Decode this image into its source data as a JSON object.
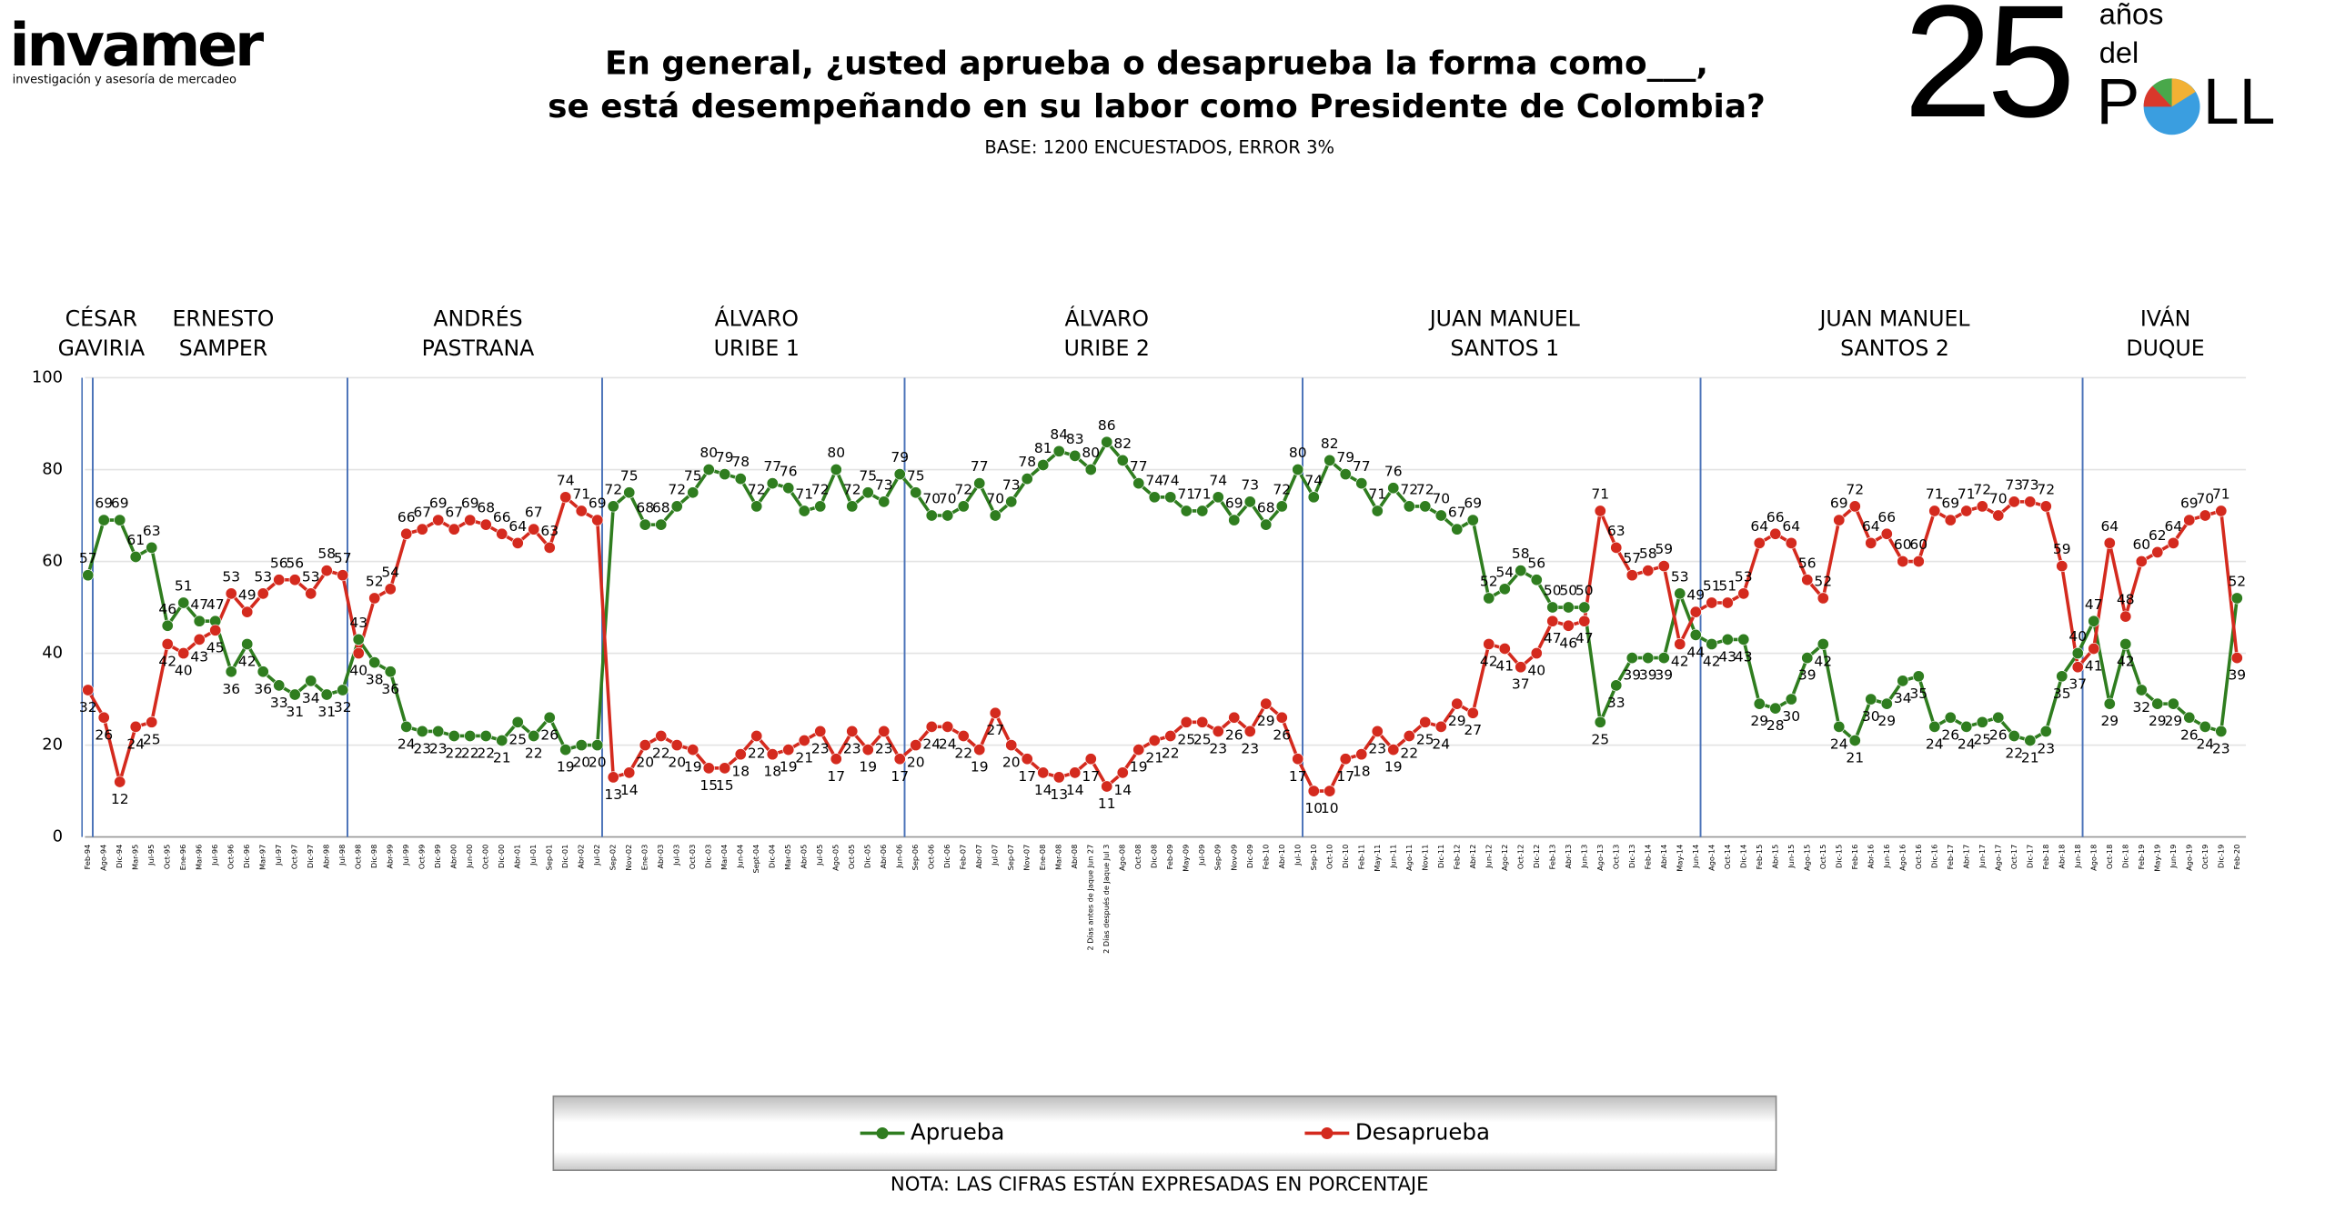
{
  "logo": {
    "brand": "invamer",
    "tagline": "investigación y asesoría de mercadeo"
  },
  "badge": {
    "number": "25",
    "line1": "años",
    "line2": "del",
    "poll_left": "P",
    "poll_right": "LL"
  },
  "chart_data": {
    "type": "line",
    "title": [
      "En general, ¿usted aprueba o desaprueba la forma como___,",
      "se está desempeñando en su labor como Presidente de Colombia?"
    ],
    "subtitle": "BASE: 1200 ENCUESTADOS, ERROR 3%",
    "note": "NOTA: LAS CIFRAS ESTÁN EXPRESADAS EN PORCENTAJE",
    "periods": [
      {
        "label": [
          "CÉSAR",
          "GAVIRIA"
        ],
        "categories": [
          "Feb-94"
        ]
      },
      {
        "label": [
          "ERNESTO",
          "SAMPER"
        ],
        "categories": [
          "Ago-94",
          "Dic-94",
          "Mar-95",
          "Jul-95",
          "Oct-95",
          "Ene-96",
          "Mar-96",
          "Jul-96",
          "Oct-96",
          "Dic-96",
          "Mar-97",
          "Jul-97",
          "Oct-97",
          "Dic-97",
          "Abr-98",
          "Jul-98"
        ]
      },
      {
        "label": [
          "ANDRÉS",
          "PASTRANA"
        ],
        "categories": [
          "Oct-98",
          "Dic-98",
          "Abr-99",
          "Jul-99",
          "Oct-99",
          "Dic-99",
          "Abr-00",
          "Jun-00",
          "Oct-00",
          "Dic-00",
          "Abr-01",
          "Jul-01",
          "Sep-01",
          "Dic-01",
          "Abr-02",
          "Jul-02"
        ]
      },
      {
        "label": [
          "ÁLVARO",
          "URIBE 1"
        ],
        "categories": [
          "Sep-02",
          "Nov-02",
          "Ene-03",
          "Abr-03",
          "Jul-03",
          "Oct-03",
          "Dic-03",
          "Mar-04",
          "Jun-04",
          "Sept-04",
          "Dic-04",
          "Mar-05",
          "Abr-05",
          "Jul-05",
          "Ago-05",
          "Oct-05",
          "Dic-05",
          "Abr-06",
          "Jun-06"
        ]
      },
      {
        "label": [
          "ÁLVARO",
          "URIBE 2"
        ],
        "categories": [
          "Sep-06",
          "Oct-06",
          "Dic-06",
          "Feb-07",
          "Abr-07",
          "Jul-07",
          "Sep-07",
          "Nov-07",
          "Ene-08",
          "Mar-08",
          "Abr-08",
          "2 Días antes de Jaque Jun 27",
          "2 Días después de Jaque Jul 3",
          "Ago-08",
          "Oct-08",
          "Dic-08",
          "Feb-09",
          "May-09",
          "Jul-09",
          "Sep-09",
          "Nov-09",
          "Dic-09",
          "Feb-10",
          "Abr-10",
          "Jul-10"
        ]
      },
      {
        "label": [
          "JUAN MANUEL",
          "SANTOS 1"
        ],
        "categories": [
          "Sep-10",
          "Oct-10",
          "Dic-10",
          "Feb-11",
          "May-11",
          "Jun-11",
          "Ago-11",
          "Nov-11",
          "Dic-11",
          "Feb-12",
          "Abr-12",
          "Jun-12",
          "Ago-12",
          "Oct-12",
          "Dic-12",
          "Feb-13",
          "Abr-13",
          "Jun-13",
          "Ago-13",
          "Oct-13",
          "Dic-13",
          "Feb-14",
          "Abr-14",
          "May-14",
          "Jun-14"
        ]
      },
      {
        "label": [
          "JUAN MANUEL",
          "SANTOS 2"
        ],
        "categories": [
          "Ago-14",
          "Oct-14",
          "Dic-14",
          "Feb-15",
          "Abr-15",
          "Jun-15",
          "Ago-15",
          "Oct-15",
          "Dic-15",
          "Feb-16",
          "Abr-16",
          "Jun-16",
          "Ago-16",
          "Oct-16",
          "Dic-16",
          "Feb-17",
          "Abr-17",
          "Jun-17",
          "Ago-17",
          "Oct-17",
          "Dic-17",
          "Feb-18",
          "Abr-18",
          "Jun-18"
        ]
      },
      {
        "label": [
          "IVÁN",
          "DUQUE"
        ],
        "categories": [
          "Ago-18",
          "Oct-18",
          "Dic-18",
          "Feb-19",
          "May-19",
          "Jun-19",
          "Ago-19",
          "Oct-19",
          "Dic-19",
          "Feb-20"
        ]
      }
    ],
    "series": [
      {
        "name": "Aprueba",
        "color": "#2f7d1f",
        "values": [
          57,
          69,
          69,
          61,
          63,
          46,
          51,
          47,
          47,
          36,
          42,
          36,
          33,
          31,
          34,
          31,
          32,
          43,
          38,
          36,
          24,
          23,
          23,
          22,
          22,
          22,
          21,
          25,
          22,
          26,
          19,
          20,
          20,
          72,
          75,
          68,
          68,
          72,
          75,
          80,
          79,
          78,
          72,
          77,
          76,
          71,
          72,
          80,
          72,
          75,
          73,
          79,
          75,
          70,
          70,
          72,
          77,
          70,
          73,
          78,
          81,
          84,
          83,
          80,
          86,
          82,
          77,
          74,
          74,
          71,
          71,
          74,
          69,
          73,
          68,
          72,
          80,
          74,
          82,
          79,
          77,
          71,
          76,
          72,
          72,
          70,
          67,
          69,
          52,
          54,
          58,
          56,
          50,
          50,
          50,
          25,
          33,
          39,
          39,
          39,
          53,
          44,
          42,
          43,
          43,
          29,
          28,
          30,
          39,
          42,
          24,
          21,
          30,
          29,
          34,
          35,
          24,
          26,
          24,
          25,
          26,
          22,
          21,
          23,
          35,
          40,
          47,
          29,
          42,
          32,
          29,
          29,
          26,
          24,
          23,
          52
        ]
      },
      {
        "name": "Desaprueba",
        "color": "#d42a1e",
        "values": [
          32,
          26,
          12,
          24,
          25,
          42,
          40,
          43,
          45,
          53,
          49,
          53,
          56,
          56,
          53,
          58,
          57,
          40,
          52,
          54,
          66,
          67,
          69,
          67,
          69,
          68,
          66,
          64,
          67,
          63,
          74,
          71,
          69,
          13,
          14,
          20,
          22,
          20,
          19,
          15,
          15,
          18,
          22,
          18,
          19,
          21,
          23,
          17,
          23,
          19,
          23,
          17,
          20,
          24,
          24,
          22,
          19,
          27,
          20,
          17,
          14,
          13,
          14,
          17,
          11,
          14,
          19,
          21,
          22,
          25,
          25,
          23,
          26,
          23,
          29,
          26,
          17,
          10,
          10,
          17,
          18,
          23,
          19,
          22,
          25,
          24,
          29,
          27,
          42,
          41,
          37,
          40,
          47,
          46,
          47,
          71,
          63,
          57,
          58,
          59,
          42,
          49,
          51,
          51,
          53,
          64,
          66,
          64,
          56,
          52,
          69,
          72,
          64,
          66,
          60,
          60,
          71,
          69,
          71,
          72,
          70,
          73,
          73,
          72,
          59,
          37,
          41,
          64,
          48,
          60,
          62,
          64,
          69,
          70,
          71,
          39
        ]
      }
    ],
    "ylim": [
      0,
      100
    ],
    "yticks": [
      0,
      20,
      40,
      60,
      80,
      100
    ],
    "grid": true,
    "legend": "bottom"
  }
}
